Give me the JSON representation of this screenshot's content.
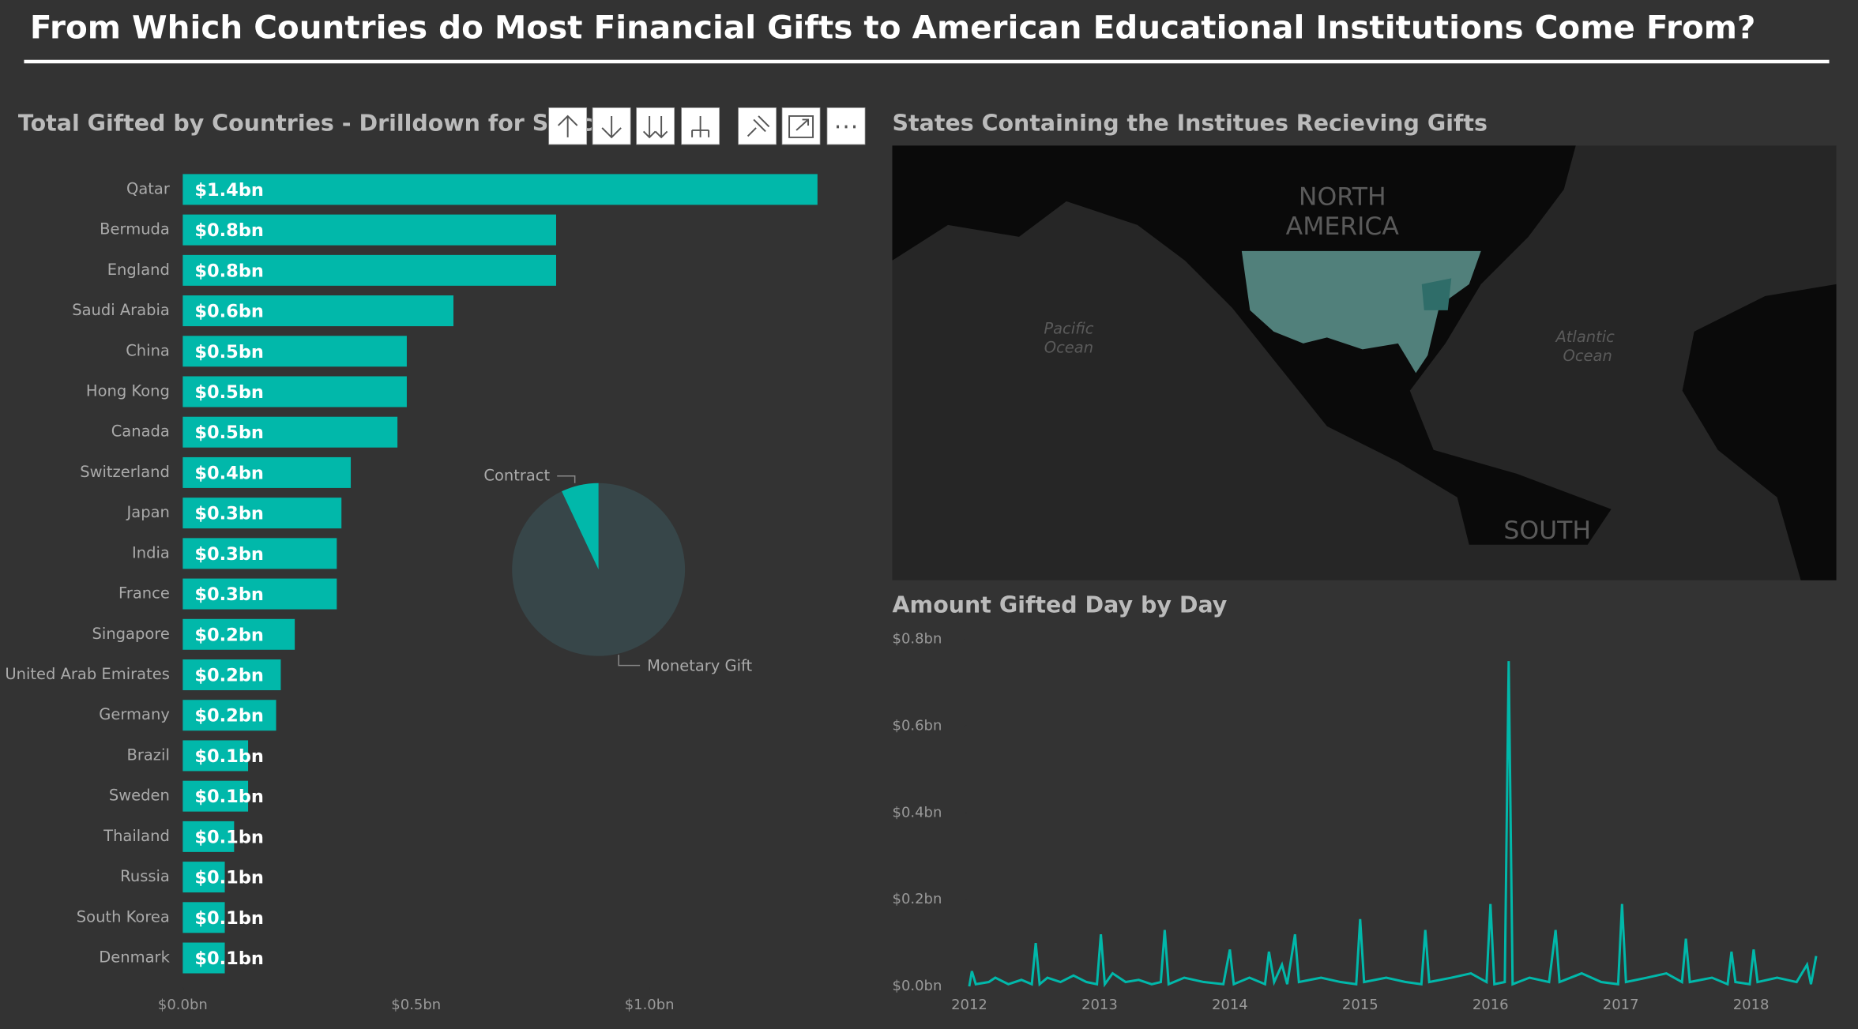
{
  "title": "From Which Countries do Most Financial Gifts to American Educational Institutions Come From?",
  "chart_data": [
    {
      "type": "hbar",
      "title": "Total Gifted by Countries - Drilldown for Spec...",
      "categories": [
        "Qatar",
        "Bermuda",
        "England",
        "Saudi Arabia",
        "China",
        "Hong Kong",
        "Canada",
        "Switzerland",
        "Japan",
        "India",
        "France",
        "Singapore",
        "United Arab Emirates",
        "Germany",
        "Brazil",
        "Sweden",
        "Thailand",
        "Russia",
        "South Korea",
        "Denmark"
      ],
      "values": [
        1.36,
        0.8,
        0.8,
        0.58,
        0.48,
        0.48,
        0.46,
        0.36,
        0.34,
        0.33,
        0.33,
        0.24,
        0.21,
        0.2,
        0.14,
        0.14,
        0.11,
        0.09,
        0.09,
        0.09
      ],
      "value_labels": [
        "$1.4bn",
        "$0.8bn",
        "$0.8bn",
        "$0.6bn",
        "$0.5bn",
        "$0.5bn",
        "$0.5bn",
        "$0.4bn",
        "$0.3bn",
        "$0.3bn",
        "$0.3bn",
        "$0.2bn",
        "$0.2bn",
        "$0.2bn",
        "$0.1bn",
        "$0.1bn",
        "$0.1bn",
        "$0.1bn",
        "$0.1bn",
        "$0.1bn"
      ],
      "color": "#01b8aa",
      "xlim": [
        0,
        1.4
      ],
      "xticks": [
        {
          "value": 0,
          "label": "$0.0bn"
        },
        {
          "value": 0.5,
          "label": "$0.5bn"
        },
        {
          "value": 1.0,
          "label": "$1.0bn"
        }
      ]
    },
    {
      "type": "pie",
      "categories": [
        "Monetary Gift",
        "Contract"
      ],
      "values": [
        93,
        7
      ],
      "colors": [
        "#374649",
        "#01b8aa"
      ]
    },
    {
      "type": "map",
      "title": "States Containing the Institues Recieving Gifts",
      "labels": [
        "NORTH",
        "AMERICA",
        "Pacific",
        "Ocean",
        "Atlantic",
        "Ocean",
        "SOUTH"
      ]
    },
    {
      "type": "line",
      "title": "Amount Gifted Day by Day",
      "color": "#01b8aa",
      "x": [
        2012.0,
        2012.02,
        2012.05,
        2012.15,
        2012.2,
        2012.3,
        2012.4,
        2012.48,
        2012.51,
        2012.54,
        2012.6,
        2012.7,
        2012.8,
        2012.9,
        2012.98,
        2013.01,
        2013.04,
        2013.1,
        2013.2,
        2013.3,
        2013.4,
        2013.47,
        2013.5,
        2013.53,
        2013.65,
        2013.8,
        2013.95,
        2014.0,
        2014.03,
        2014.15,
        2014.27,
        2014.3,
        2014.34,
        2014.4,
        2014.44,
        2014.5,
        2014.53,
        2014.7,
        2014.85,
        2014.97,
        2015.0,
        2015.03,
        2015.2,
        2015.35,
        2015.47,
        2015.5,
        2015.53,
        2015.7,
        2015.85,
        2015.97,
        2016.0,
        2016.03,
        2016.11,
        2016.14,
        2016.17,
        2016.3,
        2016.45,
        2016.5,
        2016.53,
        2016.7,
        2016.85,
        2016.98,
        2017.01,
        2017.04,
        2017.2,
        2017.35,
        2017.47,
        2017.5,
        2017.53,
        2017.7,
        2017.82,
        2017.85,
        2017.88,
        2017.99,
        2018.02,
        2018.05,
        2018.2,
        2018.35,
        2018.43,
        2018.46,
        2018.5
      ],
      "values": [
        0.0,
        0.035,
        0.005,
        0.01,
        0.02,
        0.005,
        0.015,
        0.005,
        0.1,
        0.005,
        0.02,
        0.01,
        0.025,
        0.01,
        0.005,
        0.12,
        0.005,
        0.03,
        0.01,
        0.015,
        0.005,
        0.01,
        0.13,
        0.005,
        0.02,
        0.01,
        0.005,
        0.085,
        0.005,
        0.02,
        0.005,
        0.08,
        0.01,
        0.05,
        0.005,
        0.12,
        0.01,
        0.02,
        0.01,
        0.005,
        0.155,
        0.01,
        0.02,
        0.01,
        0.005,
        0.13,
        0.01,
        0.02,
        0.03,
        0.01,
        0.19,
        0.005,
        0.01,
        0.75,
        0.005,
        0.02,
        0.01,
        0.13,
        0.01,
        0.03,
        0.01,
        0.005,
        0.19,
        0.01,
        0.02,
        0.03,
        0.01,
        0.11,
        0.01,
        0.02,
        0.005,
        0.08,
        0.01,
        0.005,
        0.085,
        0.01,
        0.02,
        0.01,
        0.05,
        0.005,
        0.07
      ],
      "xlim": [
        2012,
        2018.5
      ],
      "xticks": [
        2012,
        2013,
        2014,
        2015,
        2016,
        2017,
        2018
      ],
      "ylim": [
        0,
        0.8
      ],
      "yticks": [
        {
          "value": 0,
          "label": "$0.0bn"
        },
        {
          "value": 0.2,
          "label": "$0.2bn"
        },
        {
          "value": 0.4,
          "label": "$0.4bn"
        },
        {
          "value": 0.6,
          "label": "$0.6bn"
        },
        {
          "value": 0.8,
          "label": "$0.8bn"
        }
      ]
    }
  ]
}
